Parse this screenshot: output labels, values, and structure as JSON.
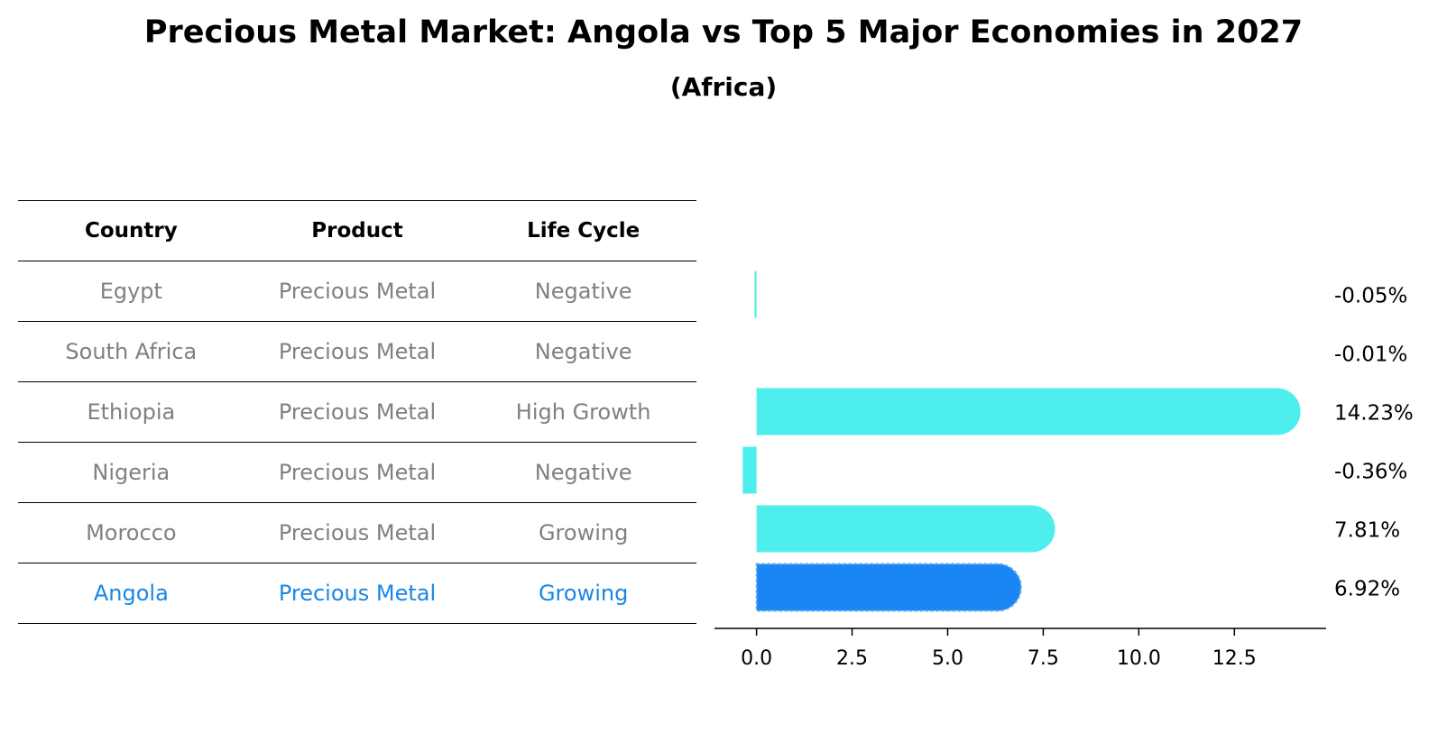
{
  "title": "Precious Metal Market: Angola vs Top 5 Major Economies in 2027",
  "subtitle": "(Africa)",
  "table": {
    "headers": [
      "Country",
      "Product",
      "Life Cycle"
    ],
    "rows": [
      [
        "Egypt",
        "Precious Metal",
        "Negative"
      ],
      [
        "South Africa",
        "Precious Metal",
        "Negative"
      ],
      [
        "Ethiopia",
        "Precious Metal",
        "High Growth"
      ],
      [
        "Nigeria",
        "Precious Metal",
        "Negative"
      ],
      [
        "Morocco",
        "Precious Metal",
        "Growing"
      ],
      [
        "Angola",
        "Precious Metal",
        "Growing"
      ]
    ],
    "highlight_row": 5
  },
  "colors": {
    "bar": "#4eeeec",
    "highlight_bar": "#1a86f4",
    "muted_text": "#808080",
    "highlight_text": "#1a86e6"
  },
  "chart_data": {
    "type": "bar",
    "orientation": "horizontal",
    "categories": [
      "Egypt",
      "South Africa",
      "Ethiopia",
      "Nigeria",
      "Morocco",
      "Angola"
    ],
    "values": [
      -0.05,
      -0.01,
      14.23,
      -0.36,
      7.81,
      6.92
    ],
    "labels": [
      "-0.05%",
      "-0.01%",
      "14.23%",
      "-0.36%",
      "7.81%",
      "6.92%"
    ],
    "highlight": "Angola",
    "xlim": [
      -1.1,
      14.9
    ],
    "xticks": [
      0.0,
      2.5,
      5.0,
      7.5,
      10.0,
      12.5
    ],
    "xtick_labels": [
      "0.0",
      "2.5",
      "5.0",
      "7.5",
      "10.0",
      "12.5"
    ],
    "xlabel": "",
    "ylabel": ""
  }
}
